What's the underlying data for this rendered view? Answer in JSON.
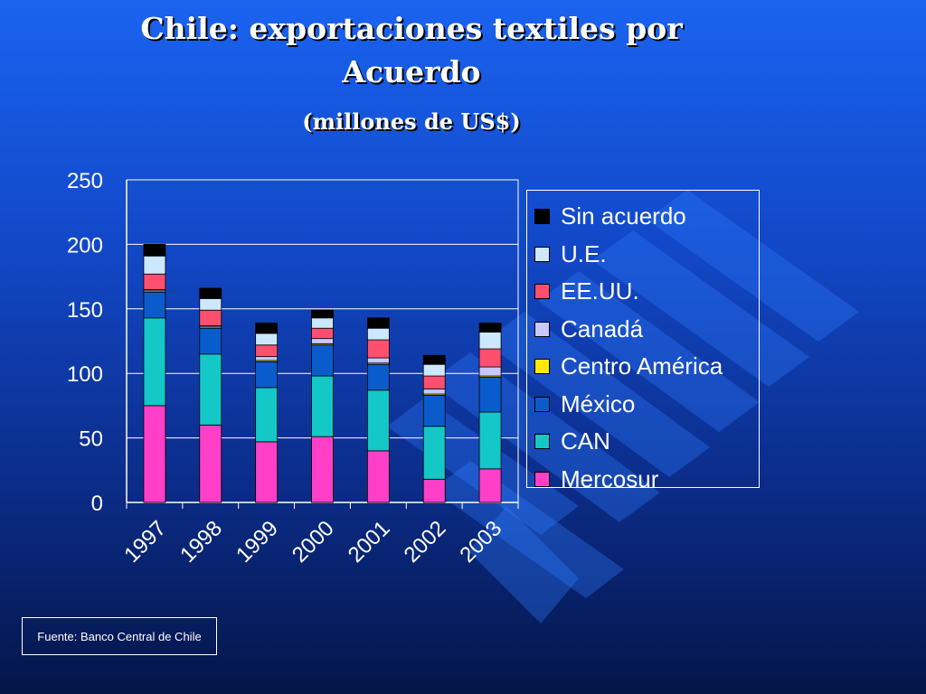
{
  "slide": {
    "title_line1": "Chile: exportaciones textiles por",
    "title_line2": "Acuerdo",
    "subtitle": "(millones de US$)",
    "source": "Fuente: Banco Central de Chile"
  },
  "chart_data": {
    "type": "bar",
    "stacked": true,
    "categories": [
      "1997",
      "1998",
      "1999",
      "2000",
      "2001",
      "2002",
      "2003"
    ],
    "ylim": [
      0,
      250
    ],
    "yticks": [
      0,
      50,
      100,
      150,
      200,
      250
    ],
    "xlabel": "",
    "ylabel": "",
    "grid": true,
    "legend_position": "right",
    "series": [
      {
        "name": "Mercosur",
        "color": "#ff3fc8",
        "values": [
          75,
          60,
          47,
          51,
          40,
          18,
          26
        ]
      },
      {
        "name": "CAN",
        "color": "#14c8c8",
        "values": [
          68,
          55,
          42,
          47,
          47,
          41,
          44
        ]
      },
      {
        "name": "México",
        "color": "#0a5ccc",
        "values": [
          20,
          20,
          20,
          24,
          20,
          24,
          27
        ]
      },
      {
        "name": "Centro América",
        "color": "#ffea00",
        "values": [
          1,
          1,
          1,
          1,
          1,
          1,
          1
        ]
      },
      {
        "name": "Canadá",
        "color": "#c8c8ff",
        "values": [
          1,
          1,
          3,
          4,
          4,
          4,
          7
        ]
      },
      {
        "name": "EE.UU.",
        "color": "#ff4f6f",
        "values": [
          12,
          12,
          9,
          8,
          14,
          10,
          14
        ]
      },
      {
        "name": "U.E.",
        "color": "#cce8ff",
        "values": [
          14,
          9,
          9,
          8,
          9,
          9,
          13
        ]
      },
      {
        "name": "Sin acuerdo",
        "color": "#000000",
        "values": [
          9,
          8,
          8,
          6,
          8,
          7,
          7
        ]
      }
    ]
  }
}
